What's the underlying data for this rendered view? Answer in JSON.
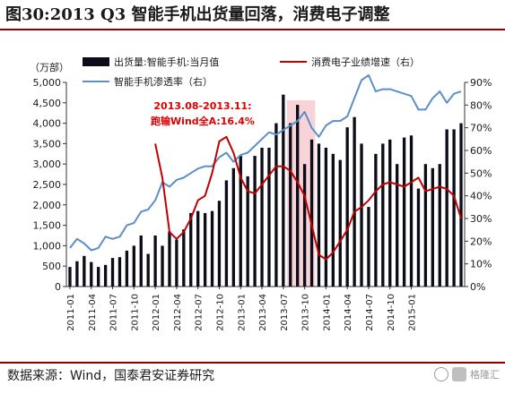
{
  "figure": {
    "title": "图30:2013 Q3 智能手机出货量回落，消费电子调整",
    "source": "数据来源：Wind，国泰君安证券研究",
    "watermark": "格隆汇"
  },
  "chart_data": {
    "type": "bar",
    "left_axis_label": "（万部）",
    "left_ylim": [
      0,
      5000
    ],
    "left_ticks": [
      "0",
      "500",
      "1,000",
      "1,500",
      "2,000",
      "2,500",
      "3,000",
      "3,500",
      "4,000",
      "4,500",
      "5,000"
    ],
    "right_ylim": [
      0,
      90
    ],
    "right_ticks": [
      "0%",
      "10%",
      "20%",
      "30%",
      "40%",
      "50%",
      "60%",
      "70%",
      "80%",
      "90%"
    ],
    "x_tick_labels": [
      "2011-01",
      "2011-04",
      "2011-07",
      "2011-10",
      "2012-01",
      "2012-04",
      "2012-07",
      "2012-10",
      "2013-01",
      "2013-04",
      "2013-07",
      "2013-10",
      "2014-01",
      "2014-04",
      "2014-07",
      "2014-10",
      "2015-01"
    ],
    "shaded_range": [
      "2013-08",
      "2013-11"
    ],
    "annotation": [
      "2013.08-2013.11:",
      "跑输Wind全A:16.4%"
    ],
    "series": [
      {
        "name": "出货量:智能手机:当月值",
        "axis": "left",
        "kind": "bar",
        "color": "#0d0d1a",
        "values": [
          480,
          620,
          750,
          600,
          480,
          530,
          700,
          720,
          880,
          1000,
          1250,
          800,
          1250,
          1000,
          1350,
          1150,
          1400,
          1800,
          1850,
          1800,
          1850,
          2100,
          2600,
          2900,
          3200,
          2700,
          3200,
          3400,
          3400,
          4000,
          4700,
          4000,
          4450,
          3000,
          3600,
          3500,
          3400,
          3250,
          3100,
          3900,
          4150,
          3500,
          1950,
          3250,
          3500,
          3600,
          3000,
          3650,
          3700,
          2400,
          3000,
          2900,
          3000,
          3850,
          3850,
          4000
        ]
      },
      {
        "name": "智能手机渗透率（右）",
        "axis": "right",
        "kind": "line",
        "color": "#5b8fc9",
        "values": [
          17,
          21,
          19,
          16,
          17,
          22,
          21,
          22,
          27,
          28,
          33,
          34,
          38,
          46,
          44,
          47,
          48,
          50,
          52,
          53,
          53,
          57,
          59,
          55,
          58,
          59,
          62,
          65,
          68,
          67,
          69,
          71,
          73,
          77,
          70,
          66,
          71,
          73,
          73,
          75,
          83,
          91,
          94,
          86,
          87,
          87,
          86,
          85,
          84,
          78,
          78,
          83,
          86,
          81,
          85,
          86
        ]
      },
      {
        "name": "消费电子业绩增速（右）",
        "axis": "right",
        "kind": "line",
        "color": "#c00000",
        "values": [
          null,
          null,
          null,
          null,
          null,
          null,
          null,
          null,
          null,
          null,
          null,
          null,
          63,
          48,
          24,
          21,
          24,
          30,
          38,
          40,
          50,
          64,
          66,
          59,
          48,
          42,
          41,
          45,
          49,
          53,
          53,
          51,
          46,
          40,
          27,
          14,
          12,
          15,
          20,
          25,
          33,
          35,
          38,
          42,
          45,
          46,
          45,
          44,
          46,
          48,
          42,
          43,
          44,
          43,
          40,
          30
        ]
      }
    ]
  }
}
